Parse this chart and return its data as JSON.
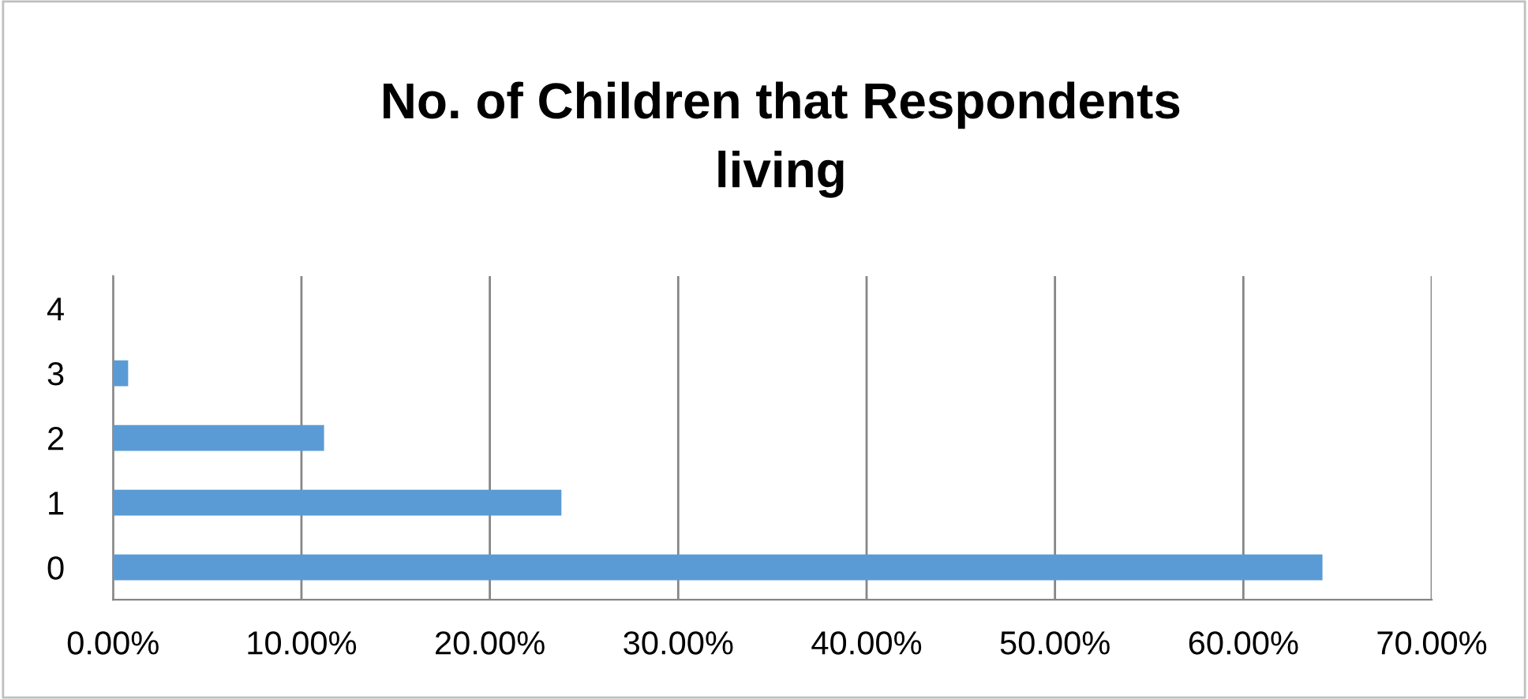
{
  "chart_data": {
    "type": "bar",
    "orientation": "horizontal",
    "title": "No. of Children that Respondents\nliving",
    "categories": [
      "4",
      "3",
      "2",
      "1",
      "0"
    ],
    "values": [
      0,
      0.8,
      11.2,
      23.8,
      64.2
    ],
    "color": "#5b9bd5",
    "xlim": [
      0,
      70
    ],
    "xticks": [
      {
        "value": 0,
        "label": "0.00%"
      },
      {
        "value": 10,
        "label": "10.00%"
      },
      {
        "value": 20,
        "label": "20.00%"
      },
      {
        "value": 30,
        "label": "30.00%"
      },
      {
        "value": 40,
        "label": "40.00%"
      },
      {
        "value": 50,
        "label": "50.00%"
      },
      {
        "value": 60,
        "label": "60.00%"
      },
      {
        "value": 70,
        "label": "70.00%"
      }
    ],
    "grid": "x",
    "legend": false
  }
}
